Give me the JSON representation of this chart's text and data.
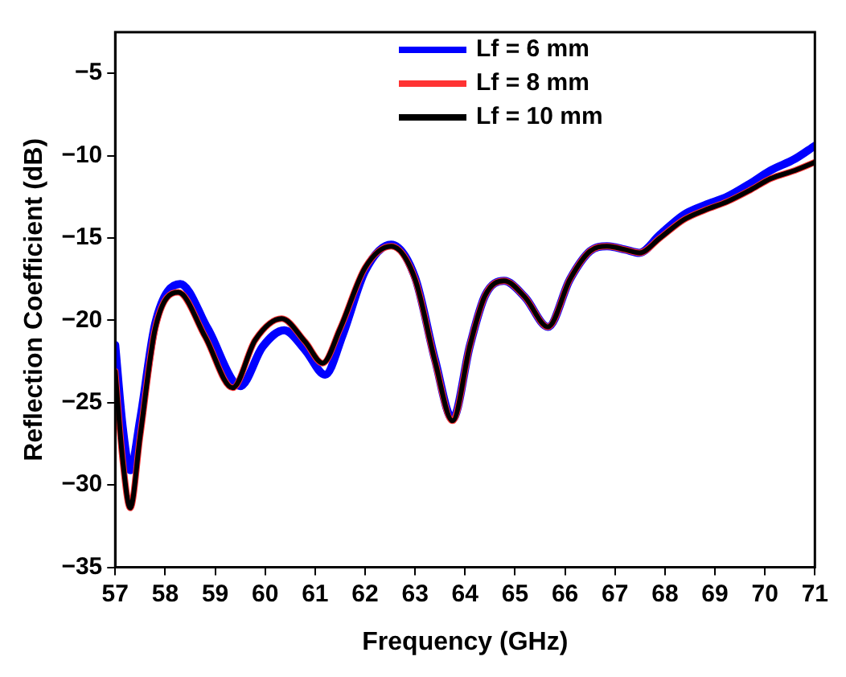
{
  "chart_data": {
    "type": "line",
    "xlabel": "Frequency (GHz)",
    "ylabel": "Reflection Coefficient (dB)",
    "xlim": [
      57,
      71
    ],
    "xticks": [
      57,
      58,
      59,
      60,
      61,
      62,
      63,
      64,
      65,
      66,
      67,
      68,
      69,
      70,
      71
    ],
    "ylim": [
      -35,
      -2.5
    ],
    "yticks": [
      {
        "value": -35,
        "label": "−35"
      },
      {
        "value": -30,
        "label": "−30"
      },
      {
        "value": -25,
        "label": "−25"
      },
      {
        "value": -20,
        "label": "−20"
      },
      {
        "value": -15,
        "label": "−15"
      },
      {
        "value": -10,
        "label": "−10"
      },
      {
        "value": -5,
        "label": "−5"
      }
    ],
    "grid": false,
    "legend": "top right",
    "line_style": "solid",
    "marker": "none",
    "series": [
      {
        "name": "Lf = 6 mm",
        "color": "#0000ff",
        "x": [
          57.0,
          57.15,
          57.3,
          57.5,
          57.8,
          58.3,
          58.85,
          59.5,
          59.95,
          60.38,
          60.8,
          61.2,
          61.55,
          62.0,
          62.52,
          63.0,
          63.4,
          63.75,
          64.1,
          64.4,
          64.78,
          65.2,
          65.66,
          66.1,
          66.5,
          66.84,
          67.2,
          67.49,
          67.9,
          68.37,
          68.8,
          69.24,
          69.7,
          70.11,
          70.6,
          71.0
        ],
        "values": [
          -21.5,
          -26.5,
          -29.1,
          -26.0,
          -20.2,
          -17.8,
          -20.5,
          -24.0,
          -21.6,
          -20.6,
          -21.8,
          -23.3,
          -20.9,
          -17.0,
          -15.4,
          -17.4,
          -22.4,
          -26.0,
          -21.5,
          -18.5,
          -17.6,
          -18.6,
          -20.4,
          -17.5,
          -15.8,
          -15.5,
          -15.7,
          -15.9,
          -14.8,
          -13.6,
          -13.0,
          -12.5,
          -11.7,
          -10.9,
          -10.2,
          -9.4
        ]
      },
      {
        "name": "Lf = 8 mm",
        "color": "#ff3333",
        "x": [
          57.0,
          57.15,
          57.3,
          57.5,
          57.8,
          58.26,
          58.8,
          59.35,
          59.8,
          60.33,
          60.8,
          61.15,
          61.5,
          62.0,
          62.52,
          63.0,
          63.4,
          63.75,
          64.1,
          64.4,
          64.78,
          65.2,
          65.66,
          66.1,
          66.5,
          66.84,
          67.2,
          67.49,
          67.9,
          68.37,
          68.8,
          69.24,
          69.7,
          70.11,
          70.6,
          71.0
        ],
        "values": [
          -23.1,
          -28.5,
          -31.4,
          -27.0,
          -20.5,
          -18.3,
          -21.0,
          -24.1,
          -21.2,
          -19.9,
          -21.3,
          -22.6,
          -20.5,
          -16.8,
          -15.5,
          -17.5,
          -22.5,
          -26.1,
          -21.5,
          -18.5,
          -17.6,
          -18.6,
          -20.4,
          -17.5,
          -15.8,
          -15.5,
          -15.7,
          -15.9,
          -15.0,
          -13.9,
          -13.3,
          -12.8,
          -12.1,
          -11.4,
          -10.9,
          -10.4
        ]
      },
      {
        "name": "Lf = 10 mm",
        "color": "#000000",
        "x": [
          57.0,
          57.15,
          57.3,
          57.5,
          57.8,
          58.26,
          58.8,
          59.35,
          59.8,
          60.33,
          60.8,
          61.15,
          61.5,
          62.0,
          62.52,
          63.0,
          63.4,
          63.75,
          64.1,
          64.4,
          64.78,
          65.2,
          65.66,
          66.1,
          66.5,
          66.84,
          67.2,
          67.49,
          67.9,
          68.37,
          68.8,
          69.24,
          69.7,
          70.11,
          70.6,
          71.0
        ],
        "values": [
          -23.1,
          -28.5,
          -31.4,
          -27.0,
          -20.5,
          -18.3,
          -21.0,
          -24.1,
          -21.2,
          -19.9,
          -21.3,
          -22.6,
          -20.5,
          -16.8,
          -15.5,
          -17.5,
          -22.5,
          -26.1,
          -21.5,
          -18.5,
          -17.6,
          -18.6,
          -20.4,
          -17.5,
          -15.8,
          -15.5,
          -15.7,
          -15.9,
          -15.0,
          -13.9,
          -13.3,
          -12.8,
          -12.1,
          -11.4,
          -10.9,
          -10.4
        ]
      }
    ]
  }
}
